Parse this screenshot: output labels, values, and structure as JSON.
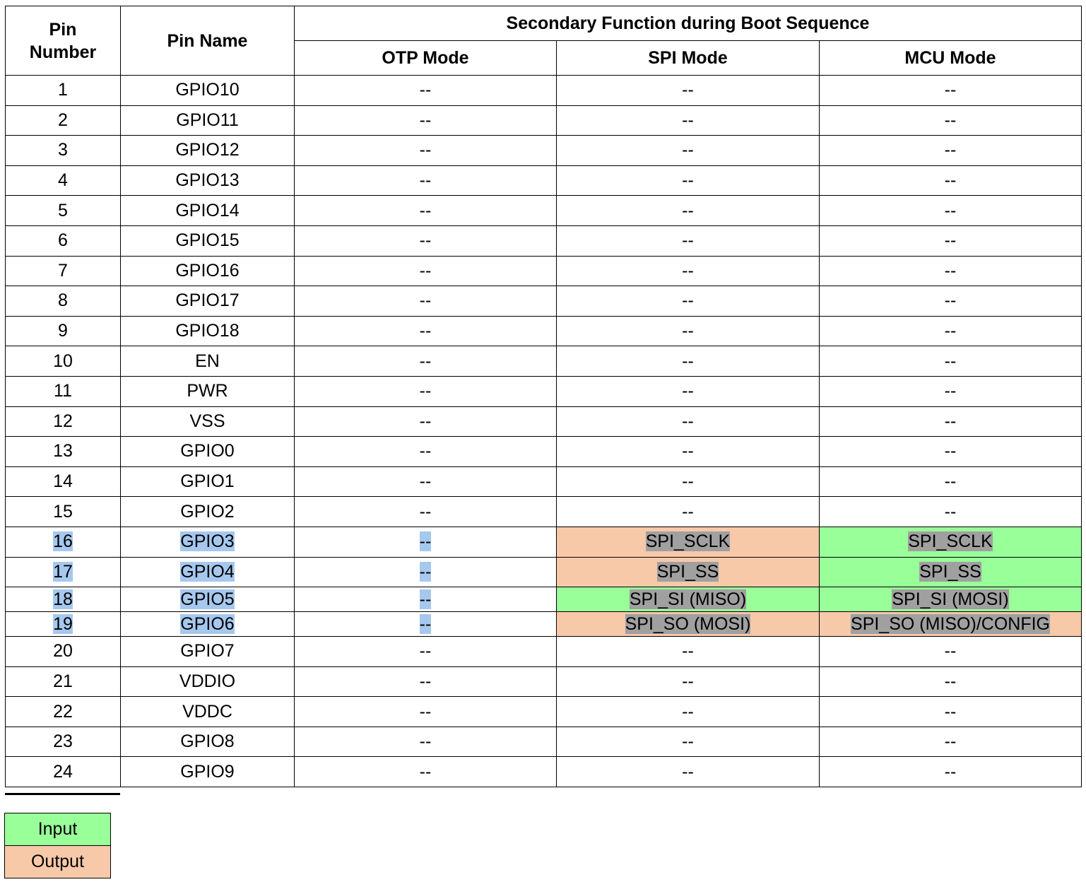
{
  "header": {
    "pin_number": "Pin\nNumber",
    "pin_name": "Pin Name",
    "group": "Secondary Function during Boot Sequence",
    "otp": "OTP Mode",
    "spi": "SPI Mode",
    "mcu": "MCU Mode"
  },
  "rows": [
    {
      "num": "1",
      "name": "GPIO10",
      "otp": "--",
      "spi": "--",
      "mcu": "--"
    },
    {
      "num": "2",
      "name": "GPIO11",
      "otp": "--",
      "spi": "--",
      "mcu": "--"
    },
    {
      "num": "3",
      "name": "GPIO12",
      "otp": "--",
      "spi": "--",
      "mcu": "--"
    },
    {
      "num": "4",
      "name": "GPIO13",
      "otp": "--",
      "spi": "--",
      "mcu": "--"
    },
    {
      "num": "5",
      "name": "GPIO14",
      "otp": "--",
      "spi": "--",
      "mcu": "--"
    },
    {
      "num": "6",
      "name": "GPIO15",
      "otp": "--",
      "spi": "--",
      "mcu": "--"
    },
    {
      "num": "7",
      "name": "GPIO16",
      "otp": "--",
      "spi": "--",
      "mcu": "--"
    },
    {
      "num": "8",
      "name": "GPIO17",
      "otp": "--",
      "spi": "--",
      "mcu": "--"
    },
    {
      "num": "9",
      "name": "GPIO18",
      "otp": "--",
      "spi": "--",
      "mcu": "--"
    },
    {
      "num": "10",
      "name": "EN",
      "otp": "--",
      "spi": "--",
      "mcu": "--"
    },
    {
      "num": "11",
      "name": "PWR",
      "otp": "--",
      "spi": "--",
      "mcu": "--"
    },
    {
      "num": "12",
      "name": "VSS",
      "otp": "--",
      "spi": "--",
      "mcu": "--"
    },
    {
      "num": "13",
      "name": "GPIO0",
      "otp": "--",
      "spi": "--",
      "mcu": "--"
    },
    {
      "num": "14",
      "name": "GPIO1",
      "otp": "--",
      "spi": "--",
      "mcu": "--"
    },
    {
      "num": "15",
      "name": "GPIO2",
      "otp": "--",
      "spi": "--",
      "mcu": "--"
    },
    {
      "num": "16",
      "name": "GPIO3",
      "otp": "--",
      "spi": "SPI_SCLK",
      "mcu": "SPI_SCLK"
    },
    {
      "num": "17",
      "name": "GPIO4",
      "otp": "--",
      "spi": "SPI_SS",
      "mcu": "SPI_SS"
    },
    {
      "num": "18",
      "name": "GPIO5",
      "otp": "--",
      "spi": "SPI_SI (MISO)",
      "mcu": "SPI_SI (MOSI)"
    },
    {
      "num": "19",
      "name": "GPIO6",
      "otp": "--",
      "spi": "SPI_SO (MOSI)",
      "mcu": "SPI_SO (MISO)/CONFIG"
    },
    {
      "num": "20",
      "name": "GPIO7",
      "otp": "--",
      "spi": "--",
      "mcu": "--"
    },
    {
      "num": "21",
      "name": "VDDIO",
      "otp": "--",
      "spi": "--",
      "mcu": "--"
    },
    {
      "num": "22",
      "name": "VDDC",
      "otp": "--",
      "spi": "--",
      "mcu": "--"
    },
    {
      "num": "23",
      "name": "GPIO8",
      "otp": "--",
      "spi": "--",
      "mcu": "--"
    },
    {
      "num": "24",
      "name": "GPIO9",
      "otp": "--",
      "spi": "--",
      "mcu": "--"
    }
  ],
  "legend": {
    "input": "Input",
    "output": "Output"
  },
  "colors": {
    "input": "#99ff99",
    "output": "#f7c9a9",
    "selection": "#a6c8ef",
    "text_highlight": "#a0a0a0"
  }
}
